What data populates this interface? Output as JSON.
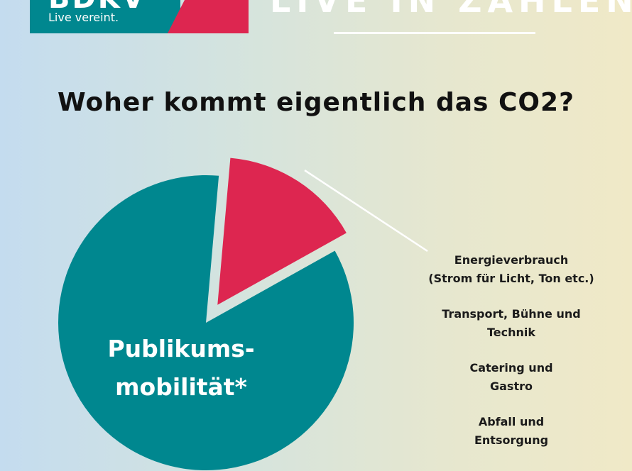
{
  "brand": {
    "wordmark": "BDKV",
    "claim": "Live vereint.",
    "banner": "LIVE IN ZAHLEN",
    "colors": {
      "teal": "#00878f",
      "red": "#dd2650",
      "white": "#ffffff"
    }
  },
  "chart_data": {
    "type": "pie",
    "title": "Woher kommt eigentlich das CO2?",
    "slices": [
      {
        "label": "Publikums-\nmobilität*",
        "share": 0.845,
        "color": "#00878f",
        "exploded": false,
        "label_position": "inside"
      },
      {
        "label": "",
        "share": 0.155,
        "color": "#dd2650",
        "exploded": true
      }
    ],
    "legend_position": "right",
    "legend": [
      "Energieverbrauch\n(Strom für Licht, Ton etc.)",
      "Transport, Bühne und\nTechnik",
      "Catering und\nGastro",
      "Abfall und\nEntsorgung"
    ]
  }
}
